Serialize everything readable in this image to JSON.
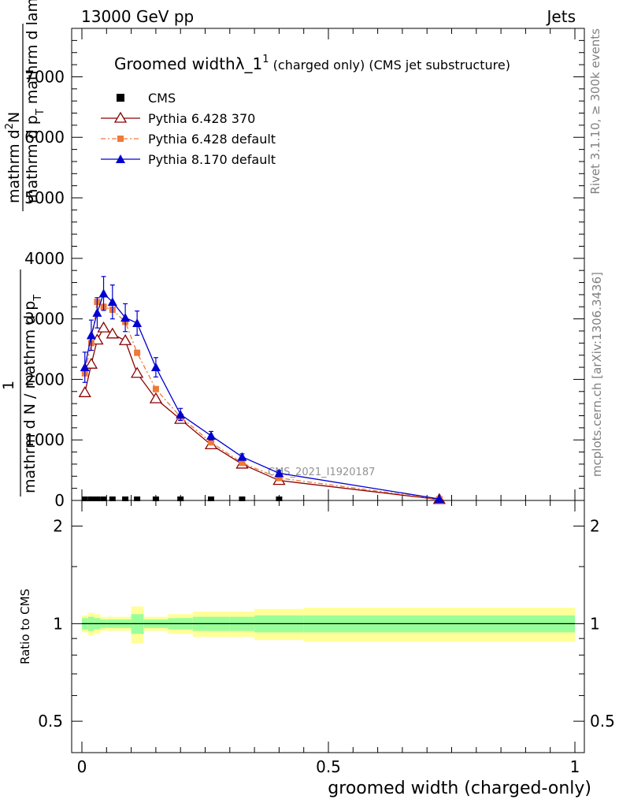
{
  "header": {
    "left": "13000 GeV pp",
    "right": "Jets"
  },
  "side": {
    "rivet": "Rivet 3.1.10, ≥ 300k events",
    "mcplots": "mcplots.cern.ch [arXiv:1306.3436]"
  },
  "watermark": "CMS_2021_I1920187",
  "chart_data": {
    "type": "line",
    "title_main": "Groomed widthλ_1",
    "title_sup": "1",
    "title_rest": " (charged only) (CMS jet substructure)",
    "ylabel_num_main": "mathrm d",
    "ylabel_num_sup": "2",
    "ylabel_num_rest": "N",
    "ylabel_den_main": "mathrm d p",
    "ylabel_den_sub": "T",
    "ylabel_den_rest": " mathrm d lambda",
    "ylabel_one": "1",
    "ylabel_inv_main": "mathrm d N / mathrm d p",
    "ylabel_inv_sub": "T",
    "xlabel": "groomed width (charged-only)",
    "ratio_ylabel": "Ratio to CMS",
    "xlim": [
      0,
      1
    ],
    "ylim": [
      0,
      7800
    ],
    "ratio_ylim": [
      0.4,
      2.4
    ],
    "x_ticks": [
      "0",
      "0.5",
      "1"
    ],
    "y_ticks": [
      "0",
      "1000",
      "2000",
      "3000",
      "4000",
      "5000",
      "6000",
      "7000"
    ],
    "ratio_ticks": [
      "0.5",
      "1",
      "2"
    ],
    "legend": [
      "CMS",
      "Pythia 6.428 370",
      "Pythia 6.428 default",
      "Pythia 8.170 default"
    ],
    "bin_edges": [
      0,
      0.0125,
      0.025,
      0.0375,
      0.05,
      0.075,
      0.1,
      0.125,
      0.175,
      0.225,
      0.3,
      0.35,
      0.45,
      1.0
    ],
    "series": [
      {
        "name": "CMS",
        "color": "#000000",
        "x": [
          0.006,
          0.019,
          0.031,
          0.044,
          0.062,
          0.088,
          0.112,
          0.15,
          0.2,
          0.262,
          0.325,
          0.4,
          0.725
        ],
        "y": [
          5,
          5,
          5,
          5,
          5,
          5,
          5,
          5,
          5,
          5,
          5,
          5,
          5
        ]
      },
      {
        "name": "Pythia 6.428 370",
        "color": "#8b0000",
        "x": [
          0.006,
          0.019,
          0.031,
          0.044,
          0.062,
          0.088,
          0.112,
          0.15,
          0.2,
          0.262,
          0.325,
          0.4,
          0.725
        ],
        "y": [
          1780,
          2250,
          2650,
          2850,
          2750,
          2640,
          2100,
          1680,
          1340,
          920,
          600,
          330,
          15
        ]
      },
      {
        "name": "Pythia 6.428 default",
        "color": "#ee7a38",
        "x": [
          0.006,
          0.019,
          0.031,
          0.044,
          0.062,
          0.088,
          0.112,
          0.15,
          0.2,
          0.262,
          0.325,
          0.4,
          0.725
        ],
        "y": [
          2100,
          2600,
          3280,
          3200,
          3150,
          2950,
          2440,
          1840,
          1380,
          960,
          620,
          370,
          20
        ]
      },
      {
        "name": "Pythia 8.170 default",
        "color": "#0000d0",
        "x": [
          0.006,
          0.019,
          0.031,
          0.044,
          0.062,
          0.088,
          0.112,
          0.15,
          0.2,
          0.262,
          0.325,
          0.4,
          0.725
        ],
        "y": [
          2200,
          2730,
          3100,
          3420,
          3280,
          3020,
          2930,
          2200,
          1420,
          1070,
          720,
          450,
          25
        ],
        "err": [
          250,
          250,
          250,
          280,
          280,
          230,
          200,
          160,
          100,
          70,
          50,
          40,
          5
        ]
      }
    ],
    "ratio_bands": {
      "inner": [
        0.04,
        0.05,
        0.04,
        0.03,
        0.03,
        0.03,
        0.07,
        0.03,
        0.04,
        0.05,
        0.05,
        0.06,
        0.06
      ],
      "outer": [
        0.06,
        0.08,
        0.07,
        0.05,
        0.05,
        0.05,
        0.13,
        0.05,
        0.07,
        0.09,
        0.09,
        0.11,
        0.12
      ]
    }
  }
}
